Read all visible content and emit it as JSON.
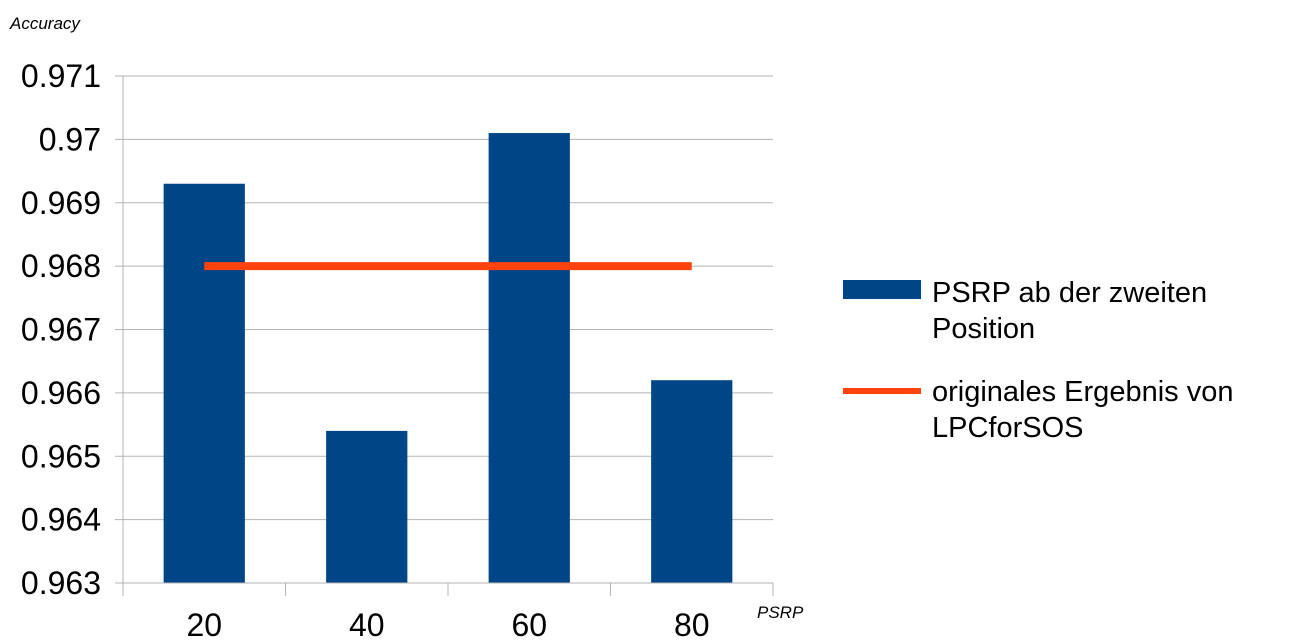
{
  "chart_data": {
    "type": "bar",
    "ylabel": "Accuracy",
    "xlabel": "PSRP",
    "categories": [
      "20",
      "40",
      "60",
      "80"
    ],
    "ylim": [
      0.963,
      0.971
    ],
    "yticks": [
      "0.963",
      "0.964",
      "0.965",
      "0.966",
      "0.967",
      "0.968",
      "0.969",
      "0.97",
      "0.971"
    ],
    "grid": true,
    "legend_position": "right",
    "series": [
      {
        "name_lines": [
          "PSRP ab der zweiten",
          "Position"
        ],
        "type": "bar",
        "color": "#004586",
        "values": [
          0.9693,
          0.9654,
          0.9701,
          0.9662
        ]
      },
      {
        "name_lines": [
          "originales Ergebnis von",
          "LPCforSOS"
        ],
        "type": "line",
        "color": "#ff420e",
        "values": [
          0.968,
          0.968,
          0.968,
          0.968
        ]
      }
    ]
  }
}
